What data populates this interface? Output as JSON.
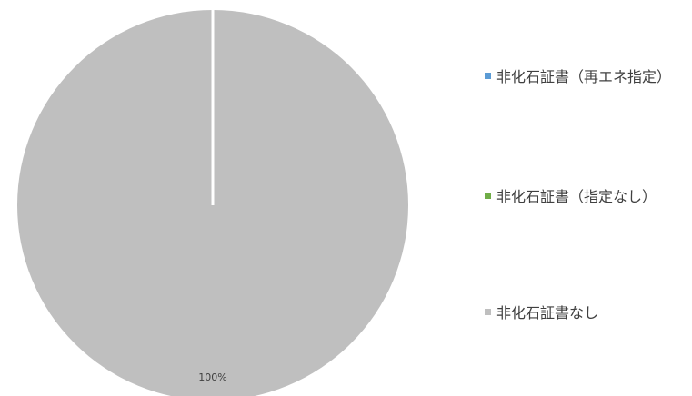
{
  "chart_data": {
    "type": "pie",
    "series": [
      {
        "name": "非化石証書（再エネ指定）",
        "value": 0,
        "color": "#5B9BD5"
      },
      {
        "name": "非化石証書（指定なし）",
        "value": 0,
        "color": "#70AD47"
      },
      {
        "name": "非化石証書なし",
        "value": 100,
        "color": "#BFBFBF"
      }
    ],
    "data_labels": [
      "",
      "",
      "100%"
    ],
    "legend_position": "right",
    "start_angle": "top",
    "slice_border_color": "#ffffff"
  }
}
